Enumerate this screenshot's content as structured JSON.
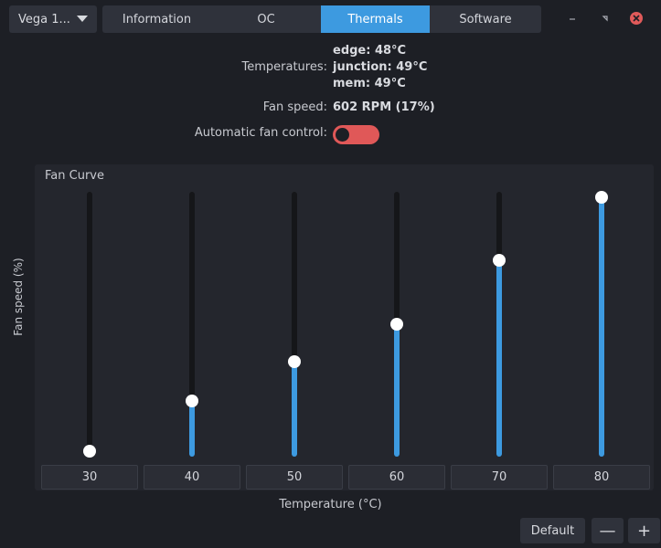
{
  "gpu_selector": {
    "value": "Vega 1..."
  },
  "tabs": [
    {
      "label": "Information"
    },
    {
      "label": "OC"
    },
    {
      "label": "Thermals"
    },
    {
      "label": "Software"
    }
  ],
  "window_controls": {
    "minimize_icon": "minimize-icon",
    "maximize_icon": "maximize-icon",
    "close_icon": "close-icon"
  },
  "thermals": {
    "temperatures_label": "Temperatures:",
    "temps": [
      {
        "text": "edge: 48°C"
      },
      {
        "text": "junction: 49°C"
      },
      {
        "text": "mem: 49°C"
      }
    ],
    "fan_speed_label": "Fan speed:",
    "fan_speed_value": "602 RPM (17%)",
    "auto_fan_label": "Automatic fan control:",
    "auto_fan_enabled": false
  },
  "fan_curve": {
    "title": "Fan Curve",
    "ylabel": "Fan speed (%)",
    "xlabel": "Temperature (°C)",
    "points": [
      {
        "temperature": "30",
        "speed": 2
      },
      {
        "temperature": "40",
        "speed": 21
      },
      {
        "temperature": "50",
        "speed": 36
      },
      {
        "temperature": "60",
        "speed": 50
      },
      {
        "temperature": "70",
        "speed": 74
      },
      {
        "temperature": "80",
        "speed": 98
      }
    ]
  },
  "buttons": {
    "default_label": "Default",
    "remove_label": "—",
    "add_label": "+"
  },
  "colors": {
    "accent": "#3d9ae0",
    "toggle_off": "#e05858",
    "close": "#e05a5a",
    "background": "#1d1f25"
  }
}
